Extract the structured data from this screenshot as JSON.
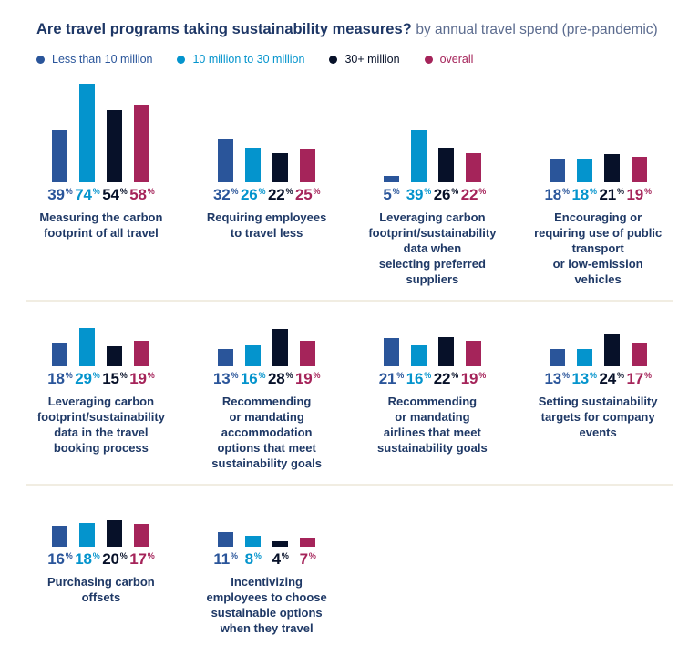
{
  "header": {
    "title": "Are travel programs taking sustainability measures?",
    "subtitle": "by annual travel spend (pre-pandemic)"
  },
  "colors": {
    "title": "#1E3766",
    "subtitle": "#5C6C8F",
    "category_text": "#1F3966",
    "divider": "#F1EDE2",
    "background": "#FFFFFF"
  },
  "chart_data": {
    "type": "bar",
    "title": "Are travel programs taking sustainability measures?",
    "subtitle": "by annual travel spend (pre-pandemic)",
    "unit": "%",
    "legend_position": "top",
    "grid": false,
    "value_labels": true,
    "ylim": [
      0,
      80
    ],
    "series": [
      {
        "name": "Less than 10 million",
        "key": "less-than-10-million",
        "color": "#2A559A"
      },
      {
        "name": "10 million to 30 million",
        "key": "10-million-to-30-million",
        "color": "#0494CD"
      },
      {
        "name": "30+ million",
        "key": "30-plus-million",
        "color": "#071129"
      },
      {
        "name": "overall",
        "key": "overall",
        "color": "#A5245A"
      }
    ],
    "groups": [
      {
        "category": "Measuring the carbon\nfootprint of all travel",
        "values": [
          39,
          74,
          54,
          58
        ]
      },
      {
        "category": "Requiring employees\nto travel less",
        "values": [
          32,
          26,
          22,
          25
        ]
      },
      {
        "category": "Leveraging carbon\nfootprint/sustainability\ndata when\nselecting preferred\nsuppliers",
        "values": [
          5,
          39,
          26,
          22
        ]
      },
      {
        "category": "Encouraging or\nrequiring use of public\ntransport\nor low-emission\nvehicles",
        "values": [
          18,
          18,
          21,
          19
        ]
      },
      {
        "category": "Leveraging carbon\nfootprint/sustainability\ndata in the travel\nbooking process",
        "values": [
          18,
          29,
          15,
          19
        ]
      },
      {
        "category": "Recommending\nor mandating\naccommodation\noptions that meet\nsustainability goals",
        "values": [
          13,
          16,
          28,
          19
        ]
      },
      {
        "category": "Recommending\nor mandating\nairlines that meet\nsustainability goals",
        "values": [
          21,
          16,
          22,
          19
        ]
      },
      {
        "category": "Setting sustainability\ntargets for company\nevents",
        "values": [
          13,
          13,
          24,
          17
        ]
      },
      {
        "category": "Purchasing carbon\noffsets",
        "values": [
          16,
          18,
          20,
          17
        ]
      },
      {
        "category": "Incentivizing\nemployees to choose\nsustainable options\nwhen they travel",
        "values": [
          11,
          8,
          4,
          7
        ]
      }
    ],
    "rows": [
      [
        0,
        1,
        2,
        3
      ],
      [
        4,
        5,
        6,
        7
      ],
      [
        8,
        9
      ]
    ]
  }
}
